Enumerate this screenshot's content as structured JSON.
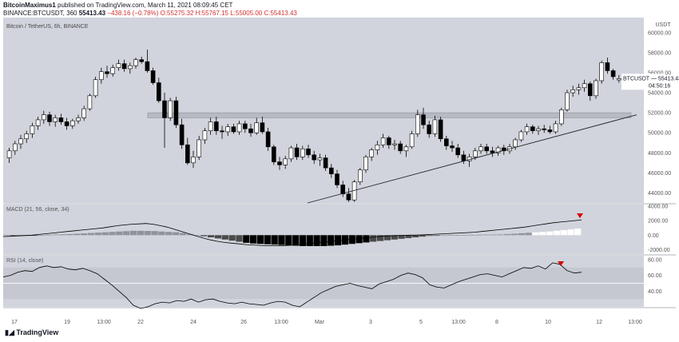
{
  "header": {
    "line1_user": "BitcoinMaximus1",
    "line1_rest": " published on TradingView.com, March 11, 2021 08:09:45 CET",
    "symbol_line": "BINANCE:BTCUSDT, 360",
    "last": "55413.43",
    "change": "−438.16 (−0.78%)",
    "ohlc": "O:55275.32 H:55767.15 L:55005.00 C:55413.43"
  },
  "chart_title": "Bitcoin / TetherUS, 6h, BINANCE",
  "currency": "USDT",
  "price_label": {
    "symbol": "BTCUSDT",
    "price": "55413.43",
    "countdown": "04:50:16"
  },
  "price_axis_ticks": [
    "60000.00",
    "58000.00",
    "56000.00",
    "54000.00",
    "52000.00",
    "50000.00",
    "48000.00",
    "46000.00",
    "44000.00"
  ],
  "macd_label": "MACD (21, 56, close, 34)",
  "macd_ticks": [
    "4000.00",
    "2000.00",
    "0.00",
    "-2000.00"
  ],
  "rsi_label": "RSI (14, close)",
  "rsi_ticks": [
    "80.00",
    "60.00",
    "40.00"
  ],
  "time_ticks": [
    "17",
    "19",
    "13:00",
    "22",
    "24",
    "26",
    "13:00",
    "Mar",
    "3",
    "5",
    "13:00",
    "8",
    "10",
    "12",
    "13:00"
  ],
  "footer": {
    "brand": "TradingView"
  },
  "colors": {
    "panel_bg": "#d1d4dc",
    "up": "#ffffff",
    "down": "#000000",
    "marker": "#d50000"
  },
  "chart_data": {
    "type": "candlestick",
    "ylim": [
      43000,
      61500
    ],
    "resistance_zone": [
      51500,
      52000
    ],
    "support_line": {
      "from_index": 73,
      "from_price": 43000,
      "to_index": 147,
      "to_price": 51800
    },
    "candles": [
      [
        47500,
        48500,
        47000,
        48200
      ],
      [
        48200,
        49200,
        47800,
        48900
      ],
      [
        48900,
        49800,
        48400,
        49400
      ],
      [
        49400,
        50200,
        49000,
        49900
      ],
      [
        49900,
        51000,
        49500,
        50700
      ],
      [
        50700,
        51600,
        50300,
        51300
      ],
      [
        51300,
        52200,
        50900,
        51800
      ],
      [
        51800,
        52100,
        50700,
        51100
      ],
      [
        51100,
        51800,
        50600,
        51500
      ],
      [
        51500,
        51900,
        50800,
        51100
      ],
      [
        51100,
        51500,
        50300,
        50700
      ],
      [
        50700,
        51400,
        50400,
        51200
      ],
      [
        51200,
        51800,
        50900,
        51500
      ],
      [
        51500,
        52700,
        51200,
        52400
      ],
      [
        52400,
        53900,
        52200,
        53700
      ],
      [
        53700,
        55600,
        53500,
        55300
      ],
      [
        55300,
        56500,
        54900,
        56100
      ],
      [
        56100,
        56700,
        55500,
        55900
      ],
      [
        55900,
        56800,
        55600,
        56500
      ],
      [
        56500,
        57300,
        56200,
        56900
      ],
      [
        56900,
        57300,
        56100,
        56400
      ],
      [
        56400,
        57000,
        55900,
        56700
      ],
      [
        56700,
        57500,
        56400,
        57300
      ],
      [
        57300,
        57600,
        56900,
        57100
      ],
      [
        57100,
        58300,
        56000,
        56200
      ],
      [
        56200,
        56500,
        54800,
        55000
      ],
      [
        55000,
        55500,
        53000,
        53200
      ],
      [
        53200,
        54000,
        48500,
        51500
      ],
      [
        51500,
        53500,
        51200,
        53200
      ],
      [
        53200,
        53600,
        50500,
        50800
      ],
      [
        50800,
        51400,
        48400,
        48800
      ],
      [
        48800,
        49500,
        46800,
        47000
      ],
      [
        47000,
        48200,
        46500,
        47600
      ],
      [
        47600,
        49700,
        47300,
        49300
      ],
      [
        49300,
        50500,
        48900,
        50200
      ],
      [
        50200,
        51500,
        49800,
        51100
      ],
      [
        51100,
        51600,
        49800,
        50200
      ],
      [
        50200,
        50700,
        49400,
        50100
      ],
      [
        50100,
        50900,
        49700,
        50600
      ],
      [
        50600,
        50900,
        49900,
        50100
      ],
      [
        50100,
        51200,
        49800,
        50900
      ],
      [
        50900,
        51200,
        50000,
        50400
      ],
      [
        50400,
        50900,
        49600,
        50000
      ],
      [
        50000,
        51500,
        49800,
        51000
      ],
      [
        51000,
        51600,
        49900,
        50100
      ],
      [
        50100,
        50500,
        48200,
        48600
      ],
      [
        48600,
        48800,
        46800,
        47100
      ],
      [
        47100,
        47600,
        46300,
        46800
      ],
      [
        46800,
        47700,
        46400,
        47400
      ],
      [
        47400,
        48700,
        47100,
        48500
      ],
      [
        48500,
        48900,
        47300,
        47600
      ],
      [
        47600,
        48700,
        47300,
        48400
      ],
      [
        48400,
        48800,
        47500,
        47800
      ],
      [
        47800,
        48200,
        46900,
        47300
      ],
      [
        47300,
        47900,
        46700,
        47500
      ],
      [
        47500,
        47800,
        46200,
        46500
      ],
      [
        46500,
        46900,
        45500,
        45900
      ],
      [
        45900,
        46300,
        44500,
        44800
      ],
      [
        44800,
        45200,
        43600,
        43900
      ],
      [
        43900,
        44500,
        43100,
        43300
      ],
      [
        43300,
        45300,
        43100,
        45100
      ],
      [
        45100,
        46500,
        44800,
        46300
      ],
      [
        46300,
        47800,
        46000,
        47600
      ],
      [
        47600,
        48500,
        47200,
        48300
      ],
      [
        48300,
        49200,
        47800,
        48800
      ],
      [
        48800,
        49900,
        48500,
        49500
      ],
      [
        49500,
        49700,
        48400,
        48800
      ],
      [
        48800,
        49300,
        48300,
        48900
      ],
      [
        48900,
        49200,
        47900,
        48200
      ],
      [
        48200,
        48800,
        47600,
        48600
      ],
      [
        48600,
        50200,
        48400,
        49900
      ],
      [
        49900,
        52300,
        49600,
        51800
      ],
      [
        51800,
        52500,
        50400,
        50800
      ],
      [
        50800,
        51200,
        49500,
        49900
      ],
      [
        49900,
        51700,
        49600,
        51300
      ],
      [
        51300,
        51600,
        49100,
        49400
      ],
      [
        49400,
        49700,
        48300,
        48700
      ],
      [
        48700,
        49200,
        48100,
        48500
      ],
      [
        48500,
        48900,
        47500,
        47800
      ],
      [
        47800,
        48200,
        46900,
        47200
      ],
      [
        47200,
        47900,
        46600,
        47600
      ],
      [
        47600,
        48500,
        47300,
        48200
      ],
      [
        48200,
        48900,
        47900,
        48600
      ],
      [
        48600,
        48900,
        47900,
        48200
      ],
      [
        48200,
        48600,
        47600,
        48000
      ],
      [
        48000,
        48700,
        47700,
        48500
      ],
      [
        48500,
        48800,
        47800,
        48200
      ],
      [
        48200,
        48900,
        47900,
        48600
      ],
      [
        48600,
        49500,
        48300,
        49300
      ],
      [
        49300,
        50300,
        49100,
        50100
      ],
      [
        50100,
        50900,
        49800,
        50600
      ],
      [
        50600,
        50800,
        49900,
        50200
      ],
      [
        50200,
        50700,
        49800,
        50400
      ],
      [
        50400,
        50800,
        50000,
        50300
      ],
      [
        50300,
        50700,
        49900,
        50100
      ],
      [
        50100,
        51200,
        49900,
        50900
      ],
      [
        50900,
        52500,
        50700,
        52300
      ],
      [
        52300,
        54300,
        52100,
        54000
      ],
      [
        54000,
        54700,
        53600,
        54300
      ],
      [
        54300,
        54900,
        53800,
        54500
      ],
      [
        54500,
        55300,
        54100,
        54900
      ],
      [
        54900,
        55100,
        53200,
        53700
      ],
      [
        53700,
        55400,
        53400,
        55200
      ],
      [
        55200,
        57200,
        54900,
        57000
      ],
      [
        57000,
        57500,
        55900,
        56200
      ],
      [
        56200,
        56400,
        55300,
        55600
      ],
      [
        55275.32,
        55767.15,
        55005,
        55413.43
      ]
    ],
    "macd": {
      "hist": [
        50,
        -30,
        -60,
        -40,
        -10,
        20,
        60,
        100,
        120,
        150,
        200,
        250,
        300,
        350,
        400,
        450,
        500,
        550,
        600,
        600,
        580,
        560,
        500,
        450,
        400,
        300,
        150,
        0,
        -150,
        -300,
        -450,
        -600,
        -750,
        -900,
        -1050,
        -1150,
        -1200,
        -1250,
        -1300,
        -1350,
        -1400,
        -1450,
        -1500,
        -1500,
        -1500,
        -1500,
        -1450,
        -1400,
        -1300,
        -1200,
        -1100,
        -1000,
        -900,
        -800,
        -700,
        -600,
        -500,
        -400,
        -300,
        -200,
        -100,
        -50,
        0,
        20,
        30,
        40,
        50,
        60,
        70,
        80,
        100,
        150,
        200,
        260,
        320,
        380,
        440,
        500,
        600,
        700,
        800,
        900
      ],
      "line": [
        -200,
        -150,
        -100,
        -50,
        0,
        100,
        200,
        300,
        400,
        500,
        600,
        700,
        800,
        900,
        1000,
        1150,
        1300,
        1400,
        1500,
        1550,
        1600,
        1500,
        1300,
        1100,
        800,
        500,
        200,
        -100,
        -400,
        -650,
        -850,
        -1000,
        -1100,
        -1200,
        -1300,
        -1350,
        -1400,
        -1450,
        -1450,
        -1450,
        -1400,
        -1350,
        -1250,
        -1150,
        -1050,
        -950,
        -850,
        -750,
        -650,
        -550,
        -450,
        -350,
        -250,
        -150,
        -100,
        -50,
        -20,
        0,
        20,
        50,
        100,
        150,
        200,
        250,
        300,
        350,
        400,
        500,
        600,
        700,
        800,
        900,
        1000,
        1100,
        1250,
        1400,
        1550,
        1700,
        1800,
        1900,
        2000,
        2100
      ]
    },
    "rsi": [
      58,
      60,
      64,
      66,
      65,
      70,
      72,
      70,
      71,
      68,
      67,
      69,
      66,
      62,
      55,
      48,
      40,
      32,
      22,
      18,
      20,
      24,
      26,
      25,
      28,
      27,
      30,
      26,
      29,
      30,
      27,
      25,
      24,
      26,
      24,
      23,
      22,
      25,
      27,
      26,
      22,
      20,
      26,
      32,
      38,
      42,
      46,
      48,
      50,
      47,
      45,
      43,
      49,
      52,
      55,
      60,
      63,
      61,
      57,
      48,
      45,
      44,
      48,
      52,
      55,
      58,
      61,
      62,
      60,
      58,
      62,
      66,
      70,
      69,
      72,
      68,
      76,
      74,
      66,
      63,
      64
    ]
  }
}
